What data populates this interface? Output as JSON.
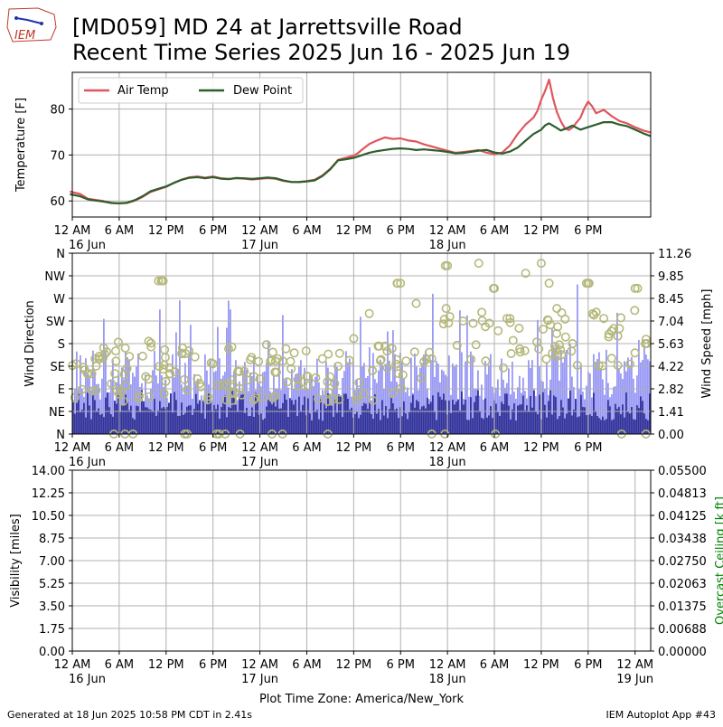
{
  "header": {
    "logo_text": "IEM",
    "title_line1": "[MD059] MD 24 at Jarrettsville Road",
    "title_line2": "Recent Time Series 2025 Jun 16 - 2025 Jun 19"
  },
  "footer": {
    "generated": "Generated at 18 Jun 2025 10:58 PM CDT in 2.41s",
    "app": "IEM Autoplot App #43"
  },
  "colors": {
    "air_temp": "#e0565e",
    "dew_point": "#2e5e2e",
    "wind_speed_bar": "#9999f5",
    "wind_gust_bar": "#333399",
    "wind_direction_marker": "#b5b87a",
    "ceiling_label": "#008000"
  },
  "chart_data": [
    {
      "id": "temperature",
      "type": "line",
      "ylabel": "Temperature [F]",
      "ylim": [
        56.5,
        88
      ],
      "yticks": [
        60,
        70,
        80
      ],
      "xlim_hours": [
        0,
        74
      ],
      "xtick_labels": [
        {
          "t": 0,
          "label": "12 AM",
          "sub": "16 Jun"
        },
        {
          "t": 6,
          "label": "6 AM",
          "sub": ""
        },
        {
          "t": 12,
          "label": "12 PM",
          "sub": ""
        },
        {
          "t": 18,
          "label": "6 PM",
          "sub": ""
        },
        {
          "t": 24,
          "label": "12 AM",
          "sub": "17 Jun"
        },
        {
          "t": 30,
          "label": "6 AM",
          "sub": ""
        },
        {
          "t": 36,
          "label": "12 PM",
          "sub": ""
        },
        {
          "t": 42,
          "label": "6 PM",
          "sub": ""
        },
        {
          "t": 48,
          "label": "12 AM",
          "sub": "18 Jun"
        },
        {
          "t": 54,
          "label": "6 AM",
          "sub": ""
        },
        {
          "t": 60,
          "label": "12 PM",
          "sub": ""
        },
        {
          "t": 66,
          "label": "6 PM",
          "sub": ""
        }
      ],
      "legend": {
        "position": "upper-left",
        "entries": [
          "Air Temp",
          "Dew Point"
        ]
      },
      "series": [
        {
          "name": "Air Temp",
          "x": [
            -0.3,
            1,
            2,
            3,
            4,
            5,
            6,
            7,
            8,
            9,
            10,
            11,
            12,
            13,
            14,
            15,
            16,
            17,
            18,
            19,
            20,
            21,
            22,
            23,
            24,
            25,
            26,
            27,
            28,
            29,
            30,
            31,
            32,
            33,
            34,
            35,
            36,
            36.5,
            37,
            38,
            39,
            40,
            41,
            42,
            43,
            44,
            45,
            46,
            47,
            48,
            49,
            50,
            51,
            52,
            53,
            54,
            55,
            56,
            57,
            58,
            59,
            59.5,
            60,
            60.5,
            61,
            61.5,
            62,
            62.5,
            63,
            63.5,
            64,
            64.5,
            65,
            65.5,
            66,
            66.5,
            67,
            68,
            69,
            70,
            71,
            72,
            73,
            74
          ],
          "y": [
            61.9,
            61.4,
            60.4,
            60.2,
            60.0,
            59.7,
            59.6,
            59.7,
            60.2,
            61.0,
            62.0,
            62.5,
            63.0,
            63.8,
            64.5,
            65.0,
            65.2,
            65.0,
            65.3,
            65.0,
            64.9,
            65.1,
            65.0,
            64.8,
            64.9,
            65.0,
            64.8,
            64.3,
            64.0,
            64.0,
            64.2,
            64.5,
            65.5,
            67.0,
            69.0,
            69.5,
            70.0,
            70.5,
            71.2,
            72.5,
            73.2,
            73.8,
            73.4,
            73.5,
            73.0,
            72.8,
            72.2,
            71.8,
            71.4,
            71.0,
            70.6,
            70.8,
            71.0,
            71.2,
            70.6,
            70.2,
            70.5,
            72.0,
            74.5,
            76.5,
            78.0,
            79.5,
            82.0,
            84.0,
            86.5,
            82.5,
            79.5,
            77.5,
            76.0,
            75.5,
            76.0,
            77.0,
            78.0,
            80.0,
            81.5,
            80.5,
            79.0,
            79.8,
            78.5,
            77.5,
            77.0,
            76.2,
            75.5,
            75.0
          ]
        },
        {
          "name": "Dew Point",
          "x": [
            -0.3,
            1,
            2,
            3,
            4,
            5,
            6,
            7,
            8,
            9,
            10,
            11,
            12,
            13,
            14,
            15,
            16,
            17,
            18,
            19,
            20,
            21,
            22,
            23,
            24,
            25,
            26,
            27,
            28,
            29,
            30,
            31,
            32,
            33,
            34,
            35,
            36,
            37,
            38,
            39,
            40,
            41,
            42,
            43,
            44,
            45,
            46,
            47,
            48,
            49,
            50,
            51,
            52,
            53,
            54,
            55,
            56,
            57,
            58,
            59,
            60,
            60.5,
            61,
            62,
            62.5,
            63,
            64,
            64.5,
            65,
            66,
            67,
            68,
            69,
            70,
            71,
            72,
            73,
            74
          ],
          "y": [
            61.4,
            61.0,
            60.4,
            60.2,
            60.0,
            59.7,
            59.6,
            59.7,
            60.2,
            61.0,
            62.0,
            62.5,
            63.0,
            63.8,
            64.5,
            65.0,
            65.2,
            65.0,
            65.3,
            65.0,
            64.9,
            65.1,
            65.0,
            64.8,
            64.9,
            65.0,
            64.8,
            64.3,
            64.0,
            64.0,
            64.2,
            64.5,
            65.5,
            67.0,
            69.0,
            69.2,
            69.5,
            70.0,
            70.5,
            70.8,
            71.0,
            71.2,
            71.3,
            71.2,
            71.0,
            71.2,
            71.1,
            71.0,
            70.8,
            70.5,
            70.6,
            70.8,
            71.0,
            71.1,
            70.5,
            70.2,
            70.6,
            71.5,
            73.0,
            74.5,
            75.5,
            76.5,
            77.0,
            76.0,
            75.5,
            75.8,
            76.5,
            76.0,
            75.5,
            76.0,
            76.5,
            77.0,
            77.0,
            76.5,
            76.2,
            75.5,
            74.8,
            74.2
          ]
        }
      ]
    },
    {
      "id": "wind",
      "type": "bar",
      "ylabel": "Wind Direction",
      "y2label": "Wind Speed [mph]",
      "ylim": [
        0,
        360
      ],
      "y2lim": [
        0,
        11.26
      ],
      "yticks": [
        {
          "v": 0,
          "label": "N"
        },
        {
          "v": 45,
          "label": "NE"
        },
        {
          "v": 90,
          "label": "E"
        },
        {
          "v": 135,
          "label": "SE"
        },
        {
          "v": 180,
          "label": "S"
        },
        {
          "v": 225,
          "label": "SW"
        },
        {
          "v": 270,
          "label": "W"
        },
        {
          "v": 315,
          "label": "NW"
        },
        {
          "v": 360,
          "label": "N"
        }
      ],
      "y2ticks": [
        "0.00",
        "1.41",
        "2.82",
        "4.22",
        "5.63",
        "7.04",
        "8.45",
        "9.85",
        "11.26"
      ],
      "xlim_hours": [
        0,
        74
      ],
      "series": [
        {
          "name": "Wind Speed",
          "segments": [
            {
              "t0": 0,
              "t1": 12,
              "level": 3.6
            },
            {
              "t0": 12,
              "t1": 24,
              "level": 3.5
            },
            {
              "t0": 24,
              "t1": 36,
              "level": 3.3
            },
            {
              "t0": 36,
              "t1": 48,
              "level": 3.8
            },
            {
              "t0": 48,
              "t1": 60,
              "level": 3.6
            },
            {
              "t0": 60,
              "t1": 74,
              "level": 3.9
            }
          ]
        },
        {
          "name": "Wind Gust",
          "segments": [
            {
              "t0": 0,
              "t1": 24,
              "level": 2.2
            },
            {
              "t0": 24,
              "t1": 48,
              "level": 2.0
            },
            {
              "t0": 48,
              "t1": 74,
              "level": 2.1
            }
          ]
        },
        {
          "name": "Wind Direction",
          "dir_points": [
            {
              "t": 0.5,
              "deg": 140
            },
            {
              "t": 2,
              "deg": 120
            },
            {
              "t": 3.5,
              "deg": 150
            },
            {
              "t": 5,
              "deg": 100
            },
            {
              "t": 7,
              "deg": 130
            },
            {
              "t": 9,
              "deg": 155
            },
            {
              "t": 11.5,
              "deg": 305
            },
            {
              "t": 12.5,
              "deg": 120
            },
            {
              "t": 14,
              "deg": 160
            },
            {
              "t": 16,
              "deg": 110
            },
            {
              "t": 18,
              "deg": 140
            },
            {
              "t": 20,
              "deg": 170
            },
            {
              "t": 22,
              "deg": 125
            },
            {
              "t": 24,
              "deg": 110
            },
            {
              "t": 26,
              "deg": 145
            },
            {
              "t": 28,
              "deg": 130
            },
            {
              "t": 30,
              "deg": 115
            },
            {
              "t": 32,
              "deg": 150
            },
            {
              "t": 34,
              "deg": 135
            },
            {
              "t": 36,
              "deg": 190
            },
            {
              "t": 38,
              "deg": 240
            },
            {
              "t": 40,
              "deg": 175
            },
            {
              "t": 42,
              "deg": 300
            },
            {
              "t": 44,
              "deg": 260
            },
            {
              "t": 46,
              "deg": 150
            },
            {
              "t": 48,
              "deg": 335
            },
            {
              "t": 50,
              "deg": 225
            },
            {
              "t": 52,
              "deg": 340
            },
            {
              "t": 54,
              "deg": 290
            },
            {
              "t": 56,
              "deg": 230
            },
            {
              "t": 58,
              "deg": 320
            },
            {
              "t": 60,
              "deg": 340
            },
            {
              "t": 61,
              "deg": 300
            },
            {
              "t": 62,
              "deg": 250
            },
            {
              "t": 64,
              "deg": 180
            },
            {
              "t": 66,
              "deg": 300
            },
            {
              "t": 68,
              "deg": 230
            },
            {
              "t": 70,
              "deg": 210
            },
            {
              "t": 72,
              "deg": 290
            },
            {
              "t": 73.5,
              "deg": 180
            }
          ]
        }
      ],
      "xtick_labels": [
        {
          "t": 0,
          "label": "12 AM",
          "sub": "16 Jun"
        },
        {
          "t": 6,
          "label": "6 AM",
          "sub": ""
        },
        {
          "t": 12,
          "label": "12 PM",
          "sub": ""
        },
        {
          "t": 18,
          "label": "6 PM",
          "sub": ""
        },
        {
          "t": 24,
          "label": "12 AM",
          "sub": "17 Jun"
        },
        {
          "t": 30,
          "label": "6 AM",
          "sub": ""
        },
        {
          "t": 36,
          "label": "12 PM",
          "sub": ""
        },
        {
          "t": 42,
          "label": "6 PM",
          "sub": ""
        },
        {
          "t": 48,
          "label": "12 AM",
          "sub": "18 Jun"
        },
        {
          "t": 54,
          "label": "6 AM",
          "sub": ""
        },
        {
          "t": 60,
          "label": "12 PM",
          "sub": ""
        },
        {
          "t": 66,
          "label": "6 PM",
          "sub": ""
        }
      ]
    },
    {
      "id": "visibility",
      "type": "line",
      "ylabel": "Visibility [miles]",
      "y2label": "Overcast Ceiling [k ft]",
      "ylim": [
        0,
        14
      ],
      "y2lim": [
        0,
        0.055
      ],
      "yticks": [
        "0.00",
        "1.75",
        "3.50",
        "5.25",
        "7.00",
        "8.75",
        "10.50",
        "12.25",
        "14.00"
      ],
      "y2ticks": [
        "0.00000",
        "0.00688",
        "0.01375",
        "0.02063",
        "0.02750",
        "0.03438",
        "0.04125",
        "0.04813",
        "0.05500"
      ],
      "xlim_hours": [
        0,
        74
      ],
      "xlabel": "Plot Time Zone: America/New_York",
      "series": [],
      "xtick_labels": [
        {
          "t": 0,
          "label": "12 AM",
          "sub": "16 Jun"
        },
        {
          "t": 6,
          "label": "6 AM",
          "sub": ""
        },
        {
          "t": 12,
          "label": "12 PM",
          "sub": ""
        },
        {
          "t": 18,
          "label": "6 PM",
          "sub": ""
        },
        {
          "t": 24,
          "label": "12 AM",
          "sub": "17 Jun"
        },
        {
          "t": 30,
          "label": "6 AM",
          "sub": ""
        },
        {
          "t": 36,
          "label": "12 PM",
          "sub": ""
        },
        {
          "t": 42,
          "label": "6 PM",
          "sub": ""
        },
        {
          "t": 48,
          "label": "12 AM",
          "sub": "18 Jun"
        },
        {
          "t": 54,
          "label": "6 AM",
          "sub": ""
        },
        {
          "t": 60,
          "label": "12 PM",
          "sub": ""
        },
        {
          "t": 66,
          "label": "6 PM",
          "sub": ""
        },
        {
          "t": 72,
          "label": "12 AM",
          "sub": "19 Jun"
        }
      ]
    }
  ]
}
